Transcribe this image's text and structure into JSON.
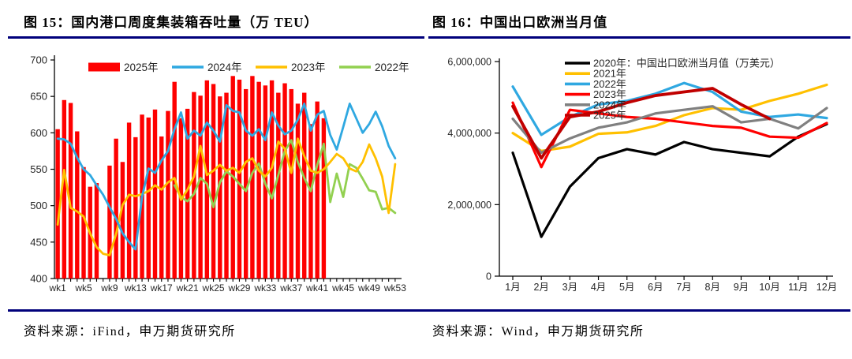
{
  "accent_color": "#00007B",
  "left_panel": {
    "title": "图 15：国内港口周度集装箱吞吐量（万 TEU）",
    "source": "资料来源：iFind，申万期货研究所"
  },
  "right_panel": {
    "title": "图 16：中国出口欧洲当月值",
    "source": "资料来源：Wind，申万期货研究所"
  },
  "chart_data": [
    {
      "type": "bar",
      "title": "国内港口周度集装箱吞吐量（万 TEU）",
      "xlabel": "",
      "ylabel": "",
      "ylim": [
        400,
        700
      ],
      "ytick_step": 50,
      "ytick_labels": [
        "400",
        "450",
        "500",
        "550",
        "600",
        "650",
        "700"
      ],
      "weeks": 53,
      "x_tick_labels": [
        "wk1",
        "wk5",
        "wk9",
        "wk13",
        "wk17",
        "wk21",
        "wk25",
        "wk29",
        "wk33",
        "wk37",
        "wk41",
        "wk45",
        "wk49",
        "wk53"
      ],
      "grid": false,
      "legend_position": "top-center",
      "series": [
        {
          "name": "2025年",
          "type": "bar",
          "color": "#FE0000",
          "values": [
            605,
            645,
            641,
            602,
            553,
            526,
            531,
            null,
            555,
            592,
            560,
            614,
            594,
            625,
            621,
            632,
            595,
            630,
            670,
            620,
            633,
            656,
            651,
            672,
            667,
            650,
            655,
            678,
            673,
            660,
            678,
            670,
            665,
            672,
            655,
            668,
            660,
            640,
            655,
            612,
            643,
            620,
            null,
            null,
            null,
            null,
            null,
            null,
            null,
            null,
            null,
            null,
            null
          ]
        },
        {
          "name": "2024年",
          "type": "line",
          "color": "#2FA8E1",
          "values": [
            592,
            591,
            585,
            566,
            550,
            542,
            528,
            515,
            498,
            482,
            462,
            450,
            440,
            512,
            551,
            545,
            562,
            575,
            605,
            628,
            592,
            603,
            596,
            614,
            603,
            588,
            638,
            630,
            628,
            603,
            596,
            605,
            590,
            628,
            610,
            598,
            603,
            618,
            640,
            603,
            625,
            630,
            597,
            577,
            608,
            640,
            620,
            600,
            612,
            629,
            609,
            582,
            565
          ]
        },
        {
          "name": "2023年",
          "type": "line",
          "color": "#FFC000",
          "values": [
            474,
            549,
            497,
            492,
            485,
            462,
            443,
            434,
            432,
            461,
            501,
            515,
            513,
            516,
            520,
            528,
            522,
            532,
            538,
            508,
            522,
            540,
            582,
            542,
            548,
            556,
            548,
            552,
            545,
            560,
            565,
            548,
            540,
            552,
            588,
            578,
            545,
            592,
            568,
            548,
            545,
            550,
            560,
            571,
            565,
            551,
            547,
            560,
            584,
            565,
            540,
            490,
            557
          ]
        },
        {
          "name": "2022年",
          "type": "line",
          "color": "#92D050",
          "values": [
            null,
            null,
            null,
            null,
            null,
            null,
            null,
            null,
            null,
            null,
            null,
            null,
            null,
            null,
            null,
            null,
            null,
            null,
            528,
            512,
            506,
            516,
            538,
            530,
            498,
            532,
            547,
            540,
            530,
            520,
            545,
            558,
            530,
            510,
            542,
            575,
            590,
            560,
            538,
            520,
            556,
            585,
            505,
            544,
            512,
            557,
            552,
            537,
            521,
            519,
            495,
            497,
            490
          ]
        }
      ]
    },
    {
      "type": "line",
      "title": "中国出口欧洲当月值",
      "xlabel": "",
      "ylabel": "",
      "ylim": [
        0,
        6000000
      ],
      "ytick_labels": [
        "0",
        "2,000,000",
        "4,000,000",
        "6,000,000"
      ],
      "ytick_values": [
        0,
        2000000,
        4000000,
        6000000
      ],
      "categories": [
        "1月",
        "2月",
        "3月",
        "4月",
        "5月",
        "6月",
        "7月",
        "8月",
        "9月",
        "10月",
        "11月",
        "12月"
      ],
      "grid": false,
      "legend_position": "top-left-inside",
      "series": [
        {
          "name": "2020年：中国出口欧洲当月值（万美元）",
          "color": "#000000",
          "values": [
            3450000,
            1100000,
            2500000,
            3300000,
            3550000,
            3400000,
            3750000,
            3550000,
            3450000,
            3350000,
            3900000,
            4250000
          ]
        },
        {
          "name": "2021年",
          "color": "#FFC000",
          "values": [
            4000000,
            3500000,
            3620000,
            3980000,
            4020000,
            4200000,
            4500000,
            4700000,
            4650000,
            4900000,
            5100000,
            5350000
          ]
        },
        {
          "name": "2022年",
          "color": "#2FA8E1",
          "values": [
            5300000,
            3950000,
            4450000,
            4800000,
            4900000,
            5100000,
            5400000,
            5150000,
            4600000,
            4450000,
            4520000,
            4420000
          ]
        },
        {
          "name": "2023年",
          "color": "#FF0000",
          "values": [
            4850000,
            3050000,
            4650000,
            4550000,
            4450000,
            4400000,
            4300000,
            4200000,
            4150000,
            3900000,
            3870000,
            4280000
          ]
        },
        {
          "name": "2024年",
          "color": "#808080",
          "values": [
            4400000,
            3450000,
            3850000,
            4150000,
            4300000,
            4550000,
            4650000,
            4750000,
            4300000,
            4400000,
            4130000,
            4700000
          ]
        },
        {
          "name": "2025年",
          "color": "#C00000",
          "values": [
            4750000,
            3300000,
            4450000,
            4600000,
            4850000,
            5050000,
            5150000,
            5250000,
            4800000,
            4400000,
            null,
            null
          ]
        }
      ]
    }
  ]
}
